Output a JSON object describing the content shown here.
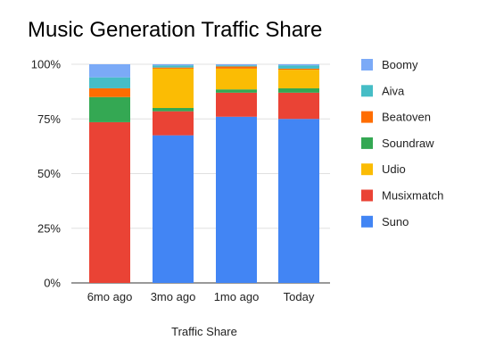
{
  "chart_data": {
    "type": "bar",
    "stacked": true,
    "percent": true,
    "title": "Music Generation Traffic Share",
    "xlabel": "Traffic Share",
    "ylabel": "",
    "categories": [
      "6mo ago",
      "3mo ago",
      "1mo ago",
      "Today"
    ],
    "yticks": [
      "0%",
      "25%",
      "50%",
      "75%",
      "100%"
    ],
    "ylim": [
      0,
      100
    ],
    "legend_position": "right",
    "series": [
      {
        "name": "Suno",
        "color": "#4285F4",
        "values": [
          0,
          67.5,
          76,
          75
        ]
      },
      {
        "name": "Musixmatch",
        "color": "#EA4335",
        "values": [
          73.5,
          11,
          11,
          12
        ]
      },
      {
        "name": "Soundraw",
        "color": "#34A853",
        "values": [
          11.5,
          1.5,
          1.5,
          2
        ]
      },
      {
        "name": "Udio",
        "color": "#FBBC04",
        "values": [
          0,
          18,
          9.5,
          8.5
        ]
      },
      {
        "name": "Beatoven",
        "color": "#FF6D01",
        "values": [
          4,
          0.5,
          1,
          0.5
        ]
      },
      {
        "name": "Aiva",
        "color": "#46BDC6",
        "values": [
          5,
          1,
          0.5,
          1.5
        ]
      },
      {
        "name": "Boomy",
        "color": "#7BAAF7",
        "values": [
          6,
          0.5,
          0.5,
          0.5
        ]
      }
    ],
    "legend_order": [
      "Boomy",
      "Aiva",
      "Beatoven",
      "Soundraw",
      "Udio",
      "Musixmatch",
      "Suno"
    ]
  }
}
